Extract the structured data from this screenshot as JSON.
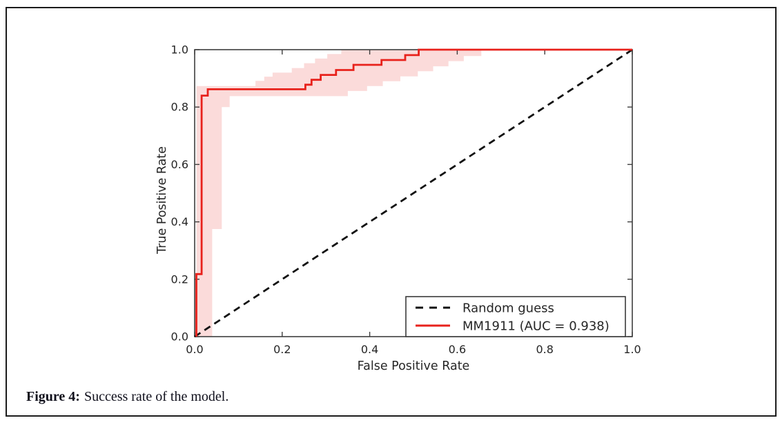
{
  "figure": {
    "caption_label": "Figure 4:",
    "caption_text": "Success rate of the model."
  },
  "style": {
    "axis_color": "#3d3d3d",
    "text_color": "#262626",
    "curve_color": "#e8211b",
    "dashed_color": "#111111",
    "band_fill": "rgba(232, 33, 27, 0.16)",
    "legend_border": "#3a3a3a",
    "background": "#ffffff"
  },
  "chart_data": {
    "type": "line",
    "title": "",
    "xlabel": "False Positive Rate",
    "ylabel": "True Positive Rate",
    "xlim": [
      0.0,
      1.0
    ],
    "ylim": [
      0.0,
      1.0
    ],
    "grid": false,
    "xticks": [
      0.0,
      0.2,
      0.4,
      0.6,
      0.8,
      1.0
    ],
    "yticks": [
      0.0,
      0.2,
      0.4,
      0.6,
      0.8,
      1.0
    ],
    "xtick_labels": [
      "0.0",
      "0.2",
      "0.4",
      "0.6",
      "0.8",
      "1.0"
    ],
    "ytick_labels": [
      "0.0",
      "0.2",
      "0.4",
      "0.6",
      "0.8",
      "1.0"
    ],
    "legend": {
      "position": "lower-right",
      "entries": [
        {
          "label": "Random guess",
          "line_style": "dashed",
          "color": "#111111"
        },
        {
          "label": "MM1911 (AUC = 0.938)",
          "line_style": "solid",
          "color": "#e8211b"
        }
      ]
    },
    "series": [
      {
        "name": "Random guess",
        "style": "dashed",
        "color": "#111111",
        "points": [
          [
            0.0,
            0.0
          ],
          [
            1.0,
            1.0
          ]
        ]
      },
      {
        "name": "MM1911",
        "auc": 0.938,
        "style": "step",
        "color": "#e8211b",
        "points": [
          [
            0.004,
            0.0
          ],
          [
            0.004,
            0.218
          ],
          [
            0.016,
            0.218
          ],
          [
            0.016,
            0.84
          ],
          [
            0.03,
            0.84
          ],
          [
            0.03,
            0.862
          ],
          [
            0.253,
            0.862
          ],
          [
            0.253,
            0.878
          ],
          [
            0.267,
            0.878
          ],
          [
            0.267,
            0.895
          ],
          [
            0.288,
            0.895
          ],
          [
            0.288,
            0.912
          ],
          [
            0.323,
            0.912
          ],
          [
            0.323,
            0.929
          ],
          [
            0.363,
            0.929
          ],
          [
            0.363,
            0.947
          ],
          [
            0.427,
            0.947
          ],
          [
            0.427,
            0.964
          ],
          [
            0.481,
            0.964
          ],
          [
            0.481,
            0.981
          ],
          [
            0.512,
            0.981
          ],
          [
            0.512,
            1.0
          ],
          [
            1.0,
            1.0
          ]
        ]
      }
    ],
    "confidence_band": {
      "series": "MM1911",
      "fill": "rgba(232, 33, 27, 0.16)",
      "upper": [
        [
          0.004,
          0.0
        ],
        [
          0.004,
          0.873
        ],
        [
          0.139,
          0.873
        ],
        [
          0.139,
          0.891
        ],
        [
          0.159,
          0.891
        ],
        [
          0.159,
          0.906
        ],
        [
          0.178,
          0.906
        ],
        [
          0.178,
          0.92
        ],
        [
          0.222,
          0.92
        ],
        [
          0.222,
          0.936
        ],
        [
          0.25,
          0.936
        ],
        [
          0.25,
          0.953
        ],
        [
          0.275,
          0.953
        ],
        [
          0.275,
          0.969
        ],
        [
          0.303,
          0.969
        ],
        [
          0.303,
          0.985
        ],
        [
          0.335,
          0.985
        ],
        [
          0.335,
          1.0
        ],
        [
          0.655,
          1.0
        ]
      ],
      "lower": [
        [
          0.004,
          0.0
        ],
        [
          0.04,
          0.0
        ],
        [
          0.04,
          0.375
        ],
        [
          0.062,
          0.375
        ],
        [
          0.062,
          0.8
        ],
        [
          0.08,
          0.8
        ],
        [
          0.08,
          0.838
        ],
        [
          0.35,
          0.838
        ],
        [
          0.35,
          0.856
        ],
        [
          0.394,
          0.856
        ],
        [
          0.394,
          0.873
        ],
        [
          0.43,
          0.873
        ],
        [
          0.43,
          0.89
        ],
        [
          0.47,
          0.89
        ],
        [
          0.47,
          0.907
        ],
        [
          0.51,
          0.907
        ],
        [
          0.51,
          0.925
        ],
        [
          0.545,
          0.925
        ],
        [
          0.545,
          0.942
        ],
        [
          0.58,
          0.942
        ],
        [
          0.58,
          0.96
        ],
        [
          0.615,
          0.96
        ],
        [
          0.615,
          0.978
        ],
        [
          0.655,
          0.978
        ],
        [
          0.655,
          1.0
        ]
      ]
    }
  }
}
